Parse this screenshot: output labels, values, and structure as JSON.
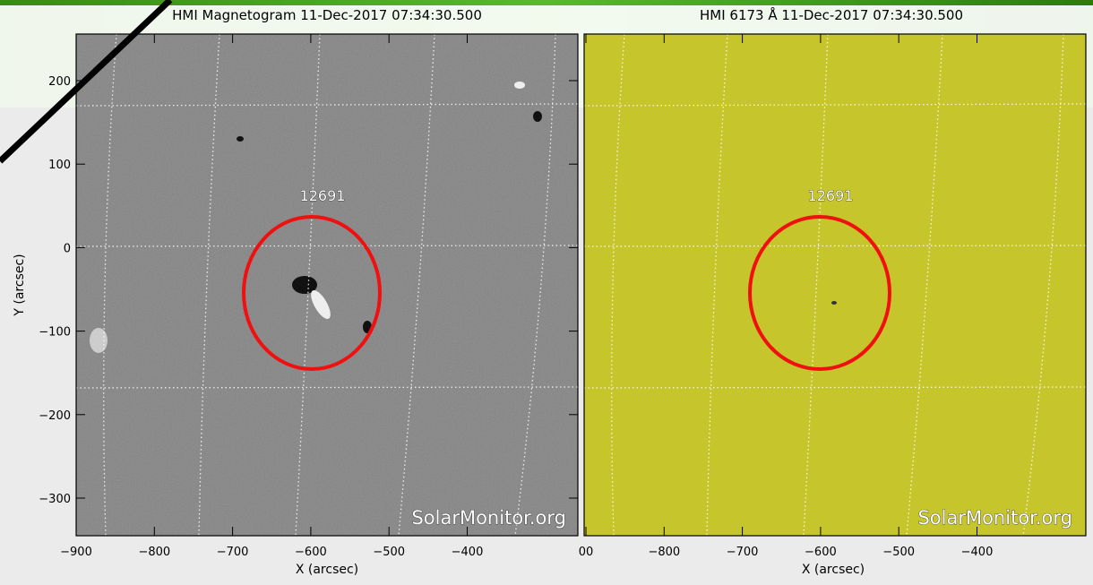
{
  "panels": [
    {
      "title": "HMI Magnetogram 11-Dec-2017 07:34:30.500",
      "region": "12691",
      "watermark": "SolarMonitor.org",
      "x_label": "X (arcsec)",
      "y_label": "Y (arcsec)",
      "xticks": [
        "−900",
        "−800",
        "−700",
        "−600",
        "−500",
        "−400"
      ],
      "yticks": [
        "200",
        "100",
        "0",
        "−100",
        "−200",
        "−300"
      ]
    },
    {
      "title": "HMI 6173 Å 11-Dec-2017 07:34:30.500",
      "region": "12691",
      "watermark": "SolarMonitor.org",
      "x_label": "X (arcsec)",
      "xticks": [
        "00",
        "−800",
        "−700",
        "−600",
        "−500",
        "−400"
      ]
    }
  ]
}
